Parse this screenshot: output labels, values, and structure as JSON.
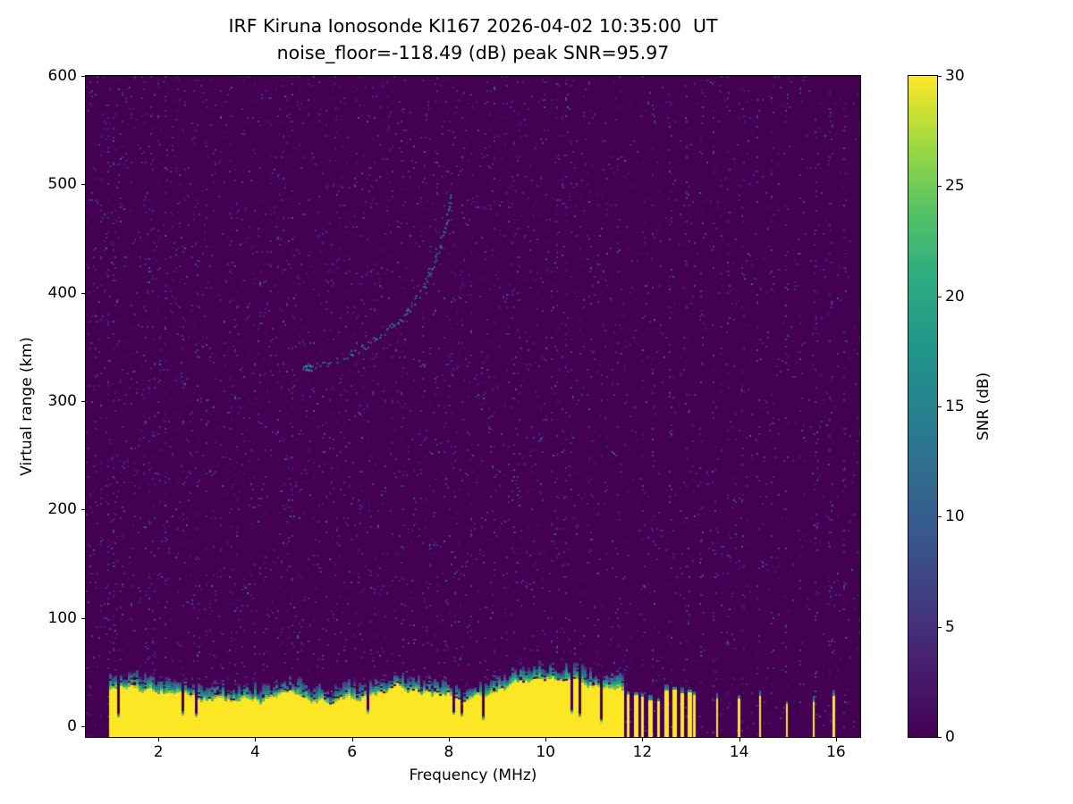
{
  "chart_data": {
    "type": "heatmap",
    "title_line1": "IRF Kiruna Ionosonde KI167 2026-04-02 10:35:00  UT",
    "title_line2": "noise_floor=-118.49 (dB) peak SNR=95.97",
    "station": "IRF Kiruna Ionosonde KI167",
    "timestamp_ut": "2026-04-02 10:35:00 UT",
    "noise_floor_db": -118.49,
    "peak_snr_db": 95.97,
    "xlabel": "Frequency (MHz)",
    "ylabel": "Virtual range (km)",
    "xlim": [
      0.5,
      16.5
    ],
    "ylim": [
      -10,
      600
    ],
    "xticks": [
      2,
      4,
      6,
      8,
      10,
      12,
      14,
      16
    ],
    "yticks": [
      0,
      100,
      200,
      300,
      400,
      500,
      600
    ],
    "grid": false,
    "colorbar": {
      "label": "SNR (dB)",
      "min": 0,
      "max": 30,
      "ticks": [
        0,
        5,
        10,
        15,
        20,
        25,
        30
      ],
      "colormap": "viridis",
      "position": "right"
    },
    "features": {
      "background_snr_db": 0,
      "ground_clutter": {
        "freq_start_mhz": 0.98,
        "freq_end_mhz": 11.58,
        "top_km_mean": 32,
        "top_km_min": 20,
        "top_km_max": 44,
        "fringe_km": 14,
        "snr_db": 30
      },
      "rfi_bars": {
        "cluster_mhz": [
          11.68,
          11.83,
          11.98,
          12.13,
          12.3,
          12.46,
          12.62,
          12.78,
          12.93,
          13.05
        ],
        "isolated_mhz": [
          13.52,
          13.97,
          14.42,
          14.97,
          15.52,
          15.93
        ],
        "height_km": 30,
        "snr_db": 30
      },
      "noise_columns_mhz": [
        12.2,
        12.55,
        12.9,
        13.2,
        13.45,
        13.75,
        14.05,
        14.35,
        14.65,
        14.95,
        15.25,
        15.55,
        15.85,
        16.15
      ],
      "echo_trace": {
        "points_mhz_km": [
          [
            5.05,
            332
          ],
          [
            5.3,
            334
          ],
          [
            5.6,
            336
          ],
          [
            5.9,
            342
          ],
          [
            6.2,
            350
          ],
          [
            6.5,
            358
          ],
          [
            6.8,
            368
          ],
          [
            7.1,
            382
          ],
          [
            7.4,
            400
          ],
          [
            7.6,
            420
          ],
          [
            7.8,
            445
          ],
          [
            7.95,
            468
          ],
          [
            8.05,
            488
          ]
        ],
        "snr_db_range": [
          8,
          16
        ]
      }
    }
  }
}
